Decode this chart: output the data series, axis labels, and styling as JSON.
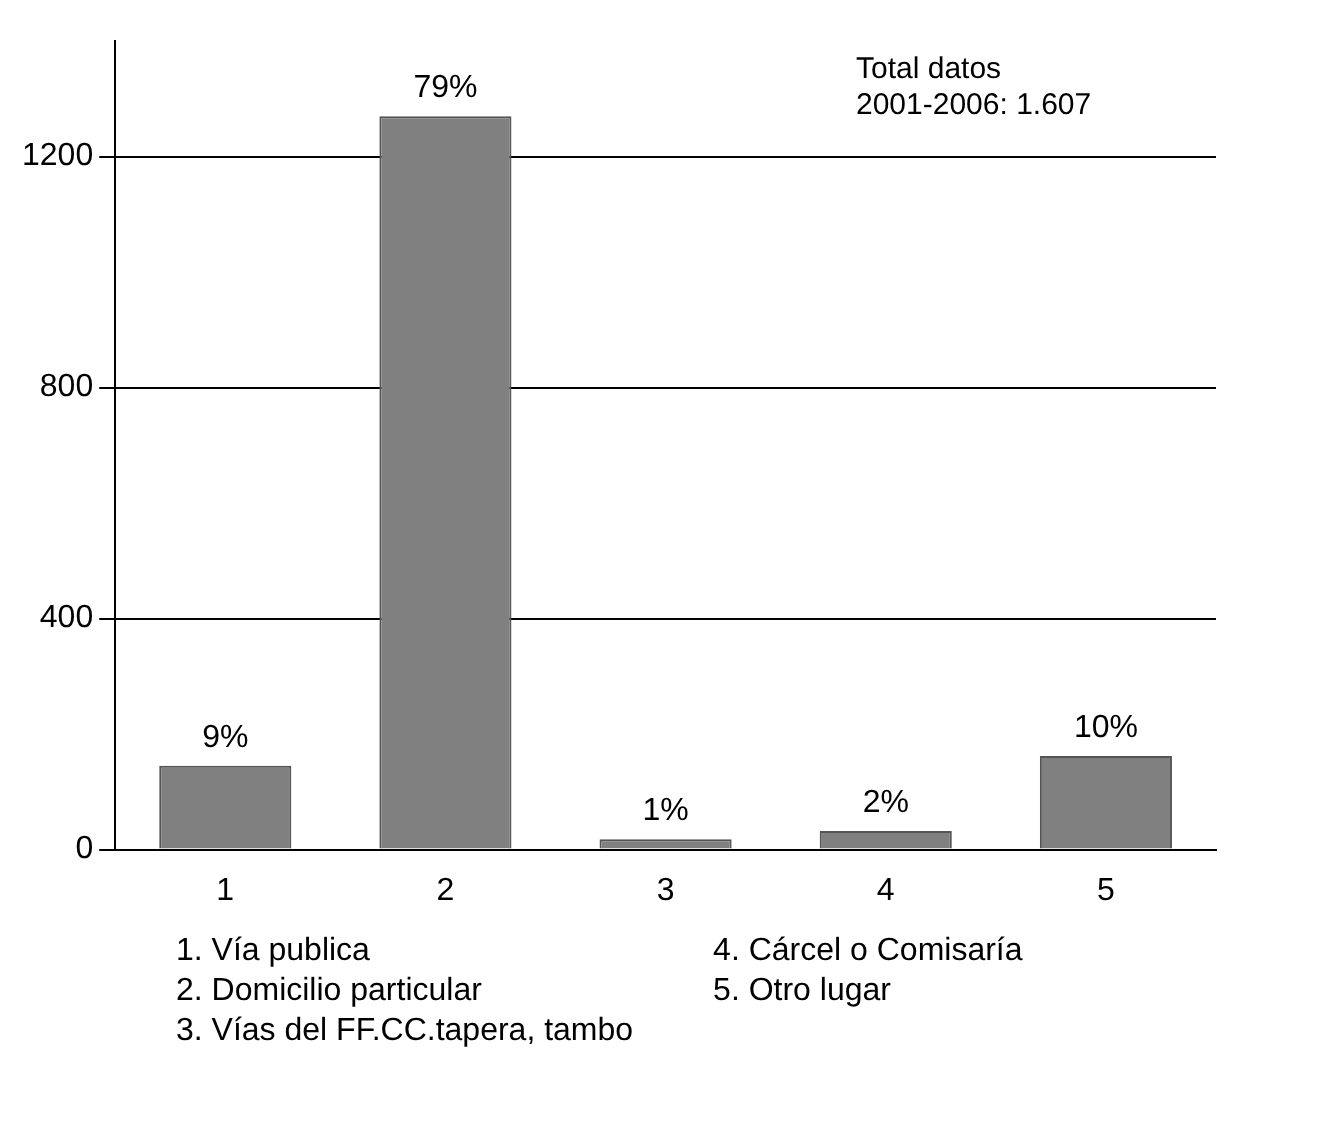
{
  "chart_data": {
    "type": "bar",
    "categories": [
      "1",
      "2",
      "3",
      "4",
      "5"
    ],
    "values": [
      145,
      1270,
      18,
      32,
      162
    ],
    "color": "#808080",
    "ylim": [
      0,
      1400
    ],
    "yticks": [
      0,
      400,
      800,
      1200
    ],
    "grid": "y",
    "annotations": [
      "Total datos\n2001-2006: 1.607",
      "1. Vía publica",
      "2. Domicilio particular",
      "3. Vías del FF.CC.tapera, tambo",
      "4. Cárcel o Comisaría",
      "5. Otro lugar",
      {
        "text": "9%",
        "x": "1",
        "y": 145
      },
      {
        "text": "79%",
        "x": "2",
        "y": 1270
      },
      {
        "text": "1%",
        "x": "3",
        "y": 18
      },
      {
        "text": "2%",
        "x": "4",
        "y": 32
      },
      {
        "text": "10%",
        "x": "5",
        "y": 162
      }
    ]
  }
}
